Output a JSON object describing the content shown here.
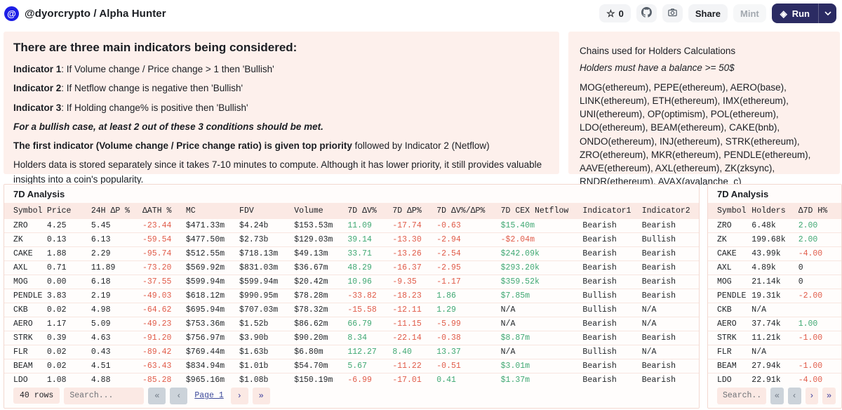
{
  "colors": {
    "panel_bg": "#fdf0ec",
    "green": "#3fa873",
    "red": "#e05b49",
    "run_bg": "#2b2b63",
    "header_row_bg": "#fbe9e4",
    "link": "#3d4a9b"
  },
  "header": {
    "avatar_glyph": "@",
    "title": "@dyorcrypto / Alpha Hunter",
    "star_icon": "☆",
    "star_count": "0",
    "share_label": "Share",
    "mint_label": "Mint",
    "run_label": "Run",
    "run_icon": "◈",
    "caret": "⌄"
  },
  "notes_panel": {
    "heading": "There are three main indicators being considered:",
    "paragraphs": [
      {
        "spans": [
          {
            "t": "Indicator 1",
            "b": 1
          },
          {
            "t": ": If Volume change / Price change > 1 then 'Bullish'"
          }
        ]
      },
      {
        "spans": [
          {
            "t": "Indicator 2",
            "b": 1
          },
          {
            "t": ": If Netflow change is negative then 'Bullish'"
          }
        ]
      },
      {
        "spans": [
          {
            "t": "Indicator 3",
            "b": 1
          },
          {
            "t": ": If Holding change% is positive then 'Bullish'"
          }
        ]
      },
      {
        "spans": [
          {
            "t": "For a bullish case, at least 2 out of these 3 conditions should be met.",
            "b": 1,
            "i": 1
          }
        ]
      },
      {
        "spans": [
          {
            "t": "The first indicator (Volume change / Price change ratio) is given top priority",
            "b": 1
          },
          {
            "t": " followed by Indicator 2 (Netflow)"
          }
        ]
      },
      {
        "spans": [
          {
            "t": "Holders data is stored separately since it takes 7-10 minutes to compute. Although it has lower priority, it still provides valuable insights into a coin's popularity."
          }
        ]
      }
    ]
  },
  "chains_panel": {
    "title": "Chains used for Holders Calculations",
    "subtitle": "Holders must have a balance >= 50$",
    "body": "MOG(ethereum), PEPE(ethereum), AERO(base), LINK(ethereum), ETH(ethereum), IMX(ethereum), UNI(ethereum), OP(optimism), POL(ethereum), LDO(ethereum), BEAM(ethereum), CAKE(bnb), ONDO(ethereum), INJ(ethereum), STRK(ethereum), ZRO(ethereum), MKR(ethereum), PENDLE(ethereum), AAVE(ethereum), AXL(ethereum), ZK(zksync), RNDR(ethereum), AVAX(avalanche_c)"
  },
  "main_table": {
    "title": "7D Analysis",
    "columns": [
      "Symbol",
      "Price",
      "24H ΔP %",
      "ΔATH %",
      "MC",
      "FDV",
      "Volume",
      "7D ΔV%",
      "7D ΔP%",
      "7D ΔV%/ΔP%",
      "7D CEX Netflow",
      "Indicator1",
      "Indicator2"
    ],
    "rows": [
      [
        {
          "t": "ZRO"
        },
        {
          "t": "4.25"
        },
        {
          "t": "5.45"
        },
        {
          "t": "-23.44",
          "c": "r"
        },
        {
          "t": "$471.33m"
        },
        {
          "t": "$4.24b"
        },
        {
          "t": "$153.53m"
        },
        {
          "t": "11.09",
          "c": "g"
        },
        {
          "t": "-17.74",
          "c": "r"
        },
        {
          "t": "-0.63",
          "c": "r"
        },
        {
          "t": "$15.40m",
          "c": "g"
        },
        {
          "t": "Bearish"
        },
        {
          "t": "Bearish"
        }
      ],
      [
        {
          "t": "ZK"
        },
        {
          "t": "0.13"
        },
        {
          "t": "6.13"
        },
        {
          "t": "-59.54",
          "c": "r"
        },
        {
          "t": "$477.50m"
        },
        {
          "t": "$2.73b"
        },
        {
          "t": "$129.03m"
        },
        {
          "t": "39.14",
          "c": "g"
        },
        {
          "t": "-13.30",
          "c": "r"
        },
        {
          "t": "-2.94",
          "c": "r"
        },
        {
          "t": "-$2.04m",
          "c": "r"
        },
        {
          "t": "Bearish"
        },
        {
          "t": "Bullish"
        }
      ],
      [
        {
          "t": "CAKE"
        },
        {
          "t": "1.88"
        },
        {
          "t": "2.29"
        },
        {
          "t": "-95.74",
          "c": "r"
        },
        {
          "t": "$512.55m"
        },
        {
          "t": "$718.13m"
        },
        {
          "t": "$49.13m"
        },
        {
          "t": "33.71",
          "c": "g"
        },
        {
          "t": "-13.26",
          "c": "r"
        },
        {
          "t": "-2.54",
          "c": "r"
        },
        {
          "t": "$242.09k",
          "c": "g"
        },
        {
          "t": "Bearish"
        },
        {
          "t": "Bearish"
        }
      ],
      [
        {
          "t": "AXL"
        },
        {
          "t": "0.71"
        },
        {
          "t": "11.89"
        },
        {
          "t": "-73.20",
          "c": "r"
        },
        {
          "t": "$569.92m"
        },
        {
          "t": "$831.03m"
        },
        {
          "t": "$36.67m"
        },
        {
          "t": "48.29",
          "c": "g"
        },
        {
          "t": "-16.37",
          "c": "r"
        },
        {
          "t": "-2.95",
          "c": "r"
        },
        {
          "t": "$293.20k",
          "c": "g"
        },
        {
          "t": "Bearish"
        },
        {
          "t": "Bearish"
        }
      ],
      [
        {
          "t": "MOG"
        },
        {
          "t": "0.00"
        },
        {
          "t": "6.18"
        },
        {
          "t": "-37.55",
          "c": "r"
        },
        {
          "t": "$599.94m"
        },
        {
          "t": "$599.94m"
        },
        {
          "t": "$20.42m"
        },
        {
          "t": "10.96",
          "c": "g"
        },
        {
          "t": "-9.35",
          "c": "r"
        },
        {
          "t": "-1.17",
          "c": "r"
        },
        {
          "t": "$359.52k",
          "c": "g"
        },
        {
          "t": "Bearish"
        },
        {
          "t": "Bearish"
        }
      ],
      [
        {
          "t": "PENDLE"
        },
        {
          "t": "3.83"
        },
        {
          "t": "2.19"
        },
        {
          "t": "-49.03",
          "c": "r"
        },
        {
          "t": "$618.12m"
        },
        {
          "t": "$990.95m"
        },
        {
          "t": "$78.28m"
        },
        {
          "t": "-33.82",
          "c": "r"
        },
        {
          "t": "-18.23",
          "c": "r"
        },
        {
          "t": "1.86",
          "c": "g"
        },
        {
          "t": "$7.85m",
          "c": "g"
        },
        {
          "t": "Bullish"
        },
        {
          "t": "Bearish"
        }
      ],
      [
        {
          "t": "CKB"
        },
        {
          "t": "0.02"
        },
        {
          "t": "4.98"
        },
        {
          "t": "-64.62",
          "c": "r"
        },
        {
          "t": "$695.94m"
        },
        {
          "t": "$707.03m"
        },
        {
          "t": "$78.32m"
        },
        {
          "t": "-15.58",
          "c": "r"
        },
        {
          "t": "-12.11",
          "c": "r"
        },
        {
          "t": "1.29",
          "c": "g"
        },
        {
          "t": "N/A"
        },
        {
          "t": "Bullish"
        },
        {
          "t": "N/A"
        }
      ],
      [
        {
          "t": "AERO"
        },
        {
          "t": "1.17"
        },
        {
          "t": "5.09"
        },
        {
          "t": "-49.23",
          "c": "r"
        },
        {
          "t": "$753.36m"
        },
        {
          "t": "$1.52b"
        },
        {
          "t": "$86.62m"
        },
        {
          "t": "66.79",
          "c": "g"
        },
        {
          "t": "-11.15",
          "c": "r"
        },
        {
          "t": "-5.99",
          "c": "r"
        },
        {
          "t": "N/A"
        },
        {
          "t": "Bearish"
        },
        {
          "t": "N/A"
        }
      ],
      [
        {
          "t": "STRK"
        },
        {
          "t": "0.39"
        },
        {
          "t": "4.63"
        },
        {
          "t": "-91.20",
          "c": "r"
        },
        {
          "t": "$756.97m"
        },
        {
          "t": "$3.90b"
        },
        {
          "t": "$90.20m"
        },
        {
          "t": "8.34",
          "c": "g"
        },
        {
          "t": "-22.14",
          "c": "r"
        },
        {
          "t": "-0.38",
          "c": "r"
        },
        {
          "t": "$8.87m",
          "c": "g"
        },
        {
          "t": "Bearish"
        },
        {
          "t": "Bearish"
        }
      ],
      [
        {
          "t": "FLR"
        },
        {
          "t": "0.02"
        },
        {
          "t": "0.43"
        },
        {
          "t": "-89.42",
          "c": "r"
        },
        {
          "t": "$769.44m"
        },
        {
          "t": "$1.63b"
        },
        {
          "t": "$6.80m"
        },
        {
          "t": "112.27",
          "c": "g"
        },
        {
          "t": "8.40",
          "c": "g"
        },
        {
          "t": "13.37",
          "c": "g"
        },
        {
          "t": "N/A"
        },
        {
          "t": "Bullish"
        },
        {
          "t": "N/A"
        }
      ],
      [
        {
          "t": "BEAM"
        },
        {
          "t": "0.02"
        },
        {
          "t": "4.51"
        },
        {
          "t": "-63.43",
          "c": "r"
        },
        {
          "t": "$834.94m"
        },
        {
          "t": "$1.01b"
        },
        {
          "t": "$54.70m"
        },
        {
          "t": "5.67",
          "c": "g"
        },
        {
          "t": "-11.22",
          "c": "r"
        },
        {
          "t": "-0.51",
          "c": "r"
        },
        {
          "t": "$3.01m",
          "c": "g"
        },
        {
          "t": "Bearish"
        },
        {
          "t": "Bearish"
        }
      ],
      [
        {
          "t": "LDO"
        },
        {
          "t": "1.08"
        },
        {
          "t": "4.88"
        },
        {
          "t": "-85.28",
          "c": "r"
        },
        {
          "t": "$965.16m"
        },
        {
          "t": "$1.08b"
        },
        {
          "t": "$150.19m"
        },
        {
          "t": "-6.99",
          "c": "r"
        },
        {
          "t": "-17.01",
          "c": "r"
        },
        {
          "t": "0.41",
          "c": "g"
        },
        {
          "t": "$1.37m",
          "c": "g"
        },
        {
          "t": "Bearish"
        },
        {
          "t": "Bearish"
        }
      ]
    ],
    "footer": {
      "rows_label": "40 rows",
      "search_placeholder": "Search...",
      "page_label": "Page 1"
    }
  },
  "holders_table": {
    "title": "7D Analysis",
    "columns": [
      "Symbol",
      "Holders",
      "Δ7D H%"
    ],
    "rows": [
      [
        {
          "t": "ZRO"
        },
        {
          "t": "6.48k"
        },
        {
          "t": "2.00",
          "c": "g"
        }
      ],
      [
        {
          "t": "ZK"
        },
        {
          "t": "199.68k"
        },
        {
          "t": "2.00",
          "c": "g"
        }
      ],
      [
        {
          "t": "CAKE"
        },
        {
          "t": "43.99k"
        },
        {
          "t": "-4.00",
          "c": "r"
        }
      ],
      [
        {
          "t": "AXL"
        },
        {
          "t": "4.89k"
        },
        {
          "t": "0"
        }
      ],
      [
        {
          "t": "MOG"
        },
        {
          "t": "21.14k"
        },
        {
          "t": "0"
        }
      ],
      [
        {
          "t": "PENDLE"
        },
        {
          "t": "19.31k"
        },
        {
          "t": "-2.00",
          "c": "r"
        }
      ],
      [
        {
          "t": "CKB"
        },
        {
          "t": "N/A"
        },
        {
          "t": ""
        }
      ],
      [
        {
          "t": "AERO"
        },
        {
          "t": "37.74k"
        },
        {
          "t": "1.00",
          "c": "g"
        }
      ],
      [
        {
          "t": "STRK"
        },
        {
          "t": "11.21k"
        },
        {
          "t": "-1.00",
          "c": "r"
        }
      ],
      [
        {
          "t": "FLR"
        },
        {
          "t": "N/A"
        },
        {
          "t": ""
        }
      ],
      [
        {
          "t": "BEAM"
        },
        {
          "t": "27.94k"
        },
        {
          "t": "-1.00",
          "c": "r"
        }
      ],
      [
        {
          "t": "LDO"
        },
        {
          "t": "22.91k"
        },
        {
          "t": "-4.00",
          "c": "r"
        }
      ]
    ],
    "footer": {
      "search_placeholder": "Search..."
    }
  },
  "pagination": {
    "first": "«",
    "prev": "‹",
    "next": "›",
    "last": "»"
  }
}
